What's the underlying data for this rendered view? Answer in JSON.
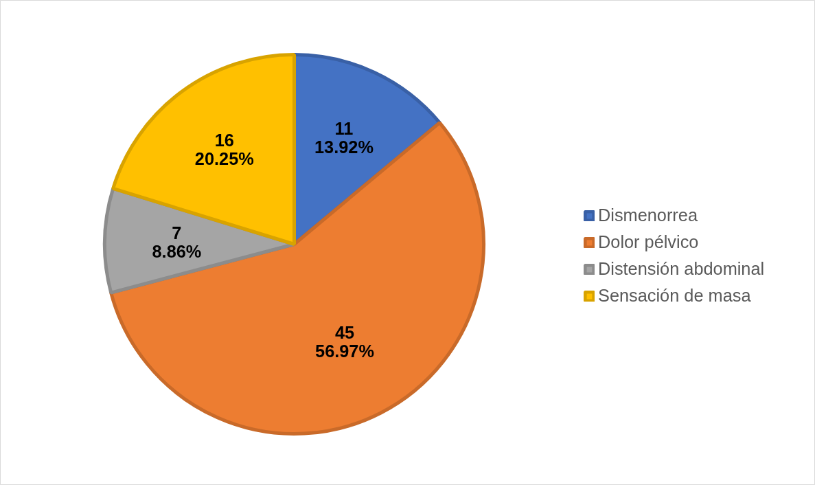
{
  "chart_data": {
    "type": "pie",
    "categories": [
      "Dismenorrea",
      "Dolor pélvico",
      "Distensión abdominal",
      "Sensación de masa"
    ],
    "values": [
      11,
      45,
      7,
      16
    ],
    "colors": [
      "#4472c4",
      "#ed7d31",
      "#a5a5a5",
      "#ffc000"
    ],
    "value_labels": [
      "11\n13.92%",
      "45\n56.97%",
      "7\n8.86%",
      "16\n20.25%"
    ],
    "legend": "right"
  }
}
